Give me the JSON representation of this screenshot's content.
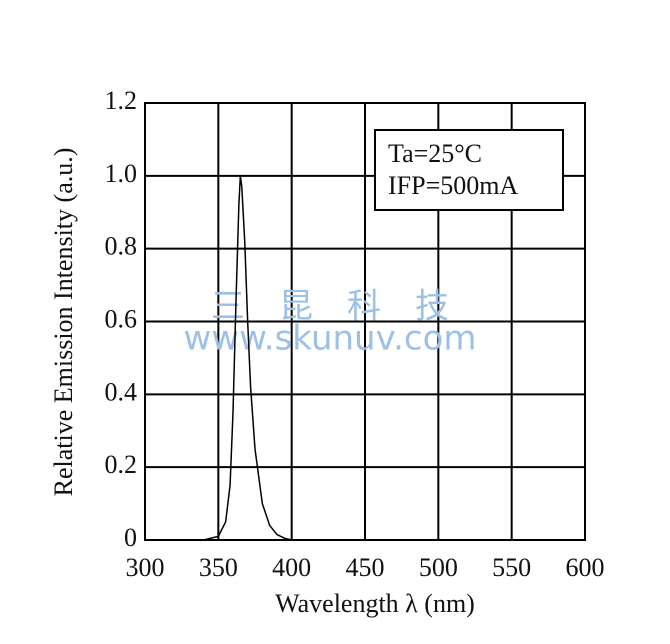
{
  "chart_data": {
    "type": "line",
    "xlabel": "Wavelength λ (nm)",
    "ylabel": "Relative Emission Intensity (a.u.)",
    "x": [
      320,
      340,
      350,
      355,
      358,
      360,
      362,
      364,
      365,
      366,
      368,
      370,
      372,
      375,
      380,
      385,
      390,
      395,
      400,
      410,
      420
    ],
    "values": [
      0,
      0,
      0.01,
      0.05,
      0.15,
      0.35,
      0.65,
      0.92,
      1.0,
      0.97,
      0.82,
      0.6,
      0.42,
      0.25,
      0.1,
      0.04,
      0.015,
      0.005,
      0,
      0,
      0
    ],
    "color": "#000000",
    "xlim": [
      300,
      600
    ],
    "xticks": [
      300,
      350,
      400,
      450,
      500,
      550,
      600
    ],
    "ylim": [
      0,
      1.2
    ],
    "yticks": [
      0,
      0.2,
      0.4,
      0.6,
      0.8,
      {
        "value": 1,
        "label": "1.0"
      },
      1.2
    ],
    "grid": true,
    "legend_texts": [
      "Ta=25°C",
      "IFP=500mA"
    ],
    "watermark": [
      "三　昆　科　技",
      "www.skunuv.com"
    ]
  }
}
